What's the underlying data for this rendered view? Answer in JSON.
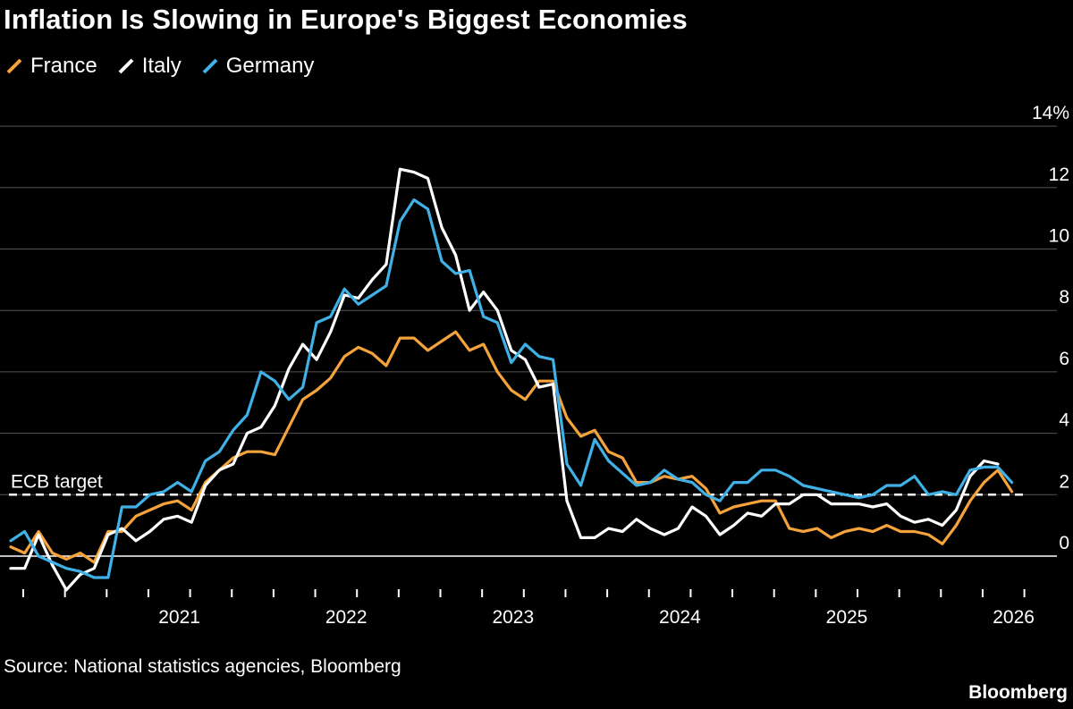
{
  "title": "Inflation Is Slowing in Europe's Biggest Economies",
  "source": "Source: National statistics agencies, Bloomberg",
  "brand": "Bloomberg",
  "colors": {
    "France": "#f5a33a",
    "Italy": "#ffffff",
    "Germany": "#3fb1e6",
    "grid": "#555555",
    "background": "#000000"
  },
  "chart_data": {
    "type": "line",
    "title": "Inflation Is Slowing in Europe's Biggest Economies",
    "xlabel": "",
    "ylabel": "",
    "x_ticks": [
      "2021",
      "2022",
      "2023",
      "2024",
      "2025",
      "2026"
    ],
    "y_ticks": [
      "0",
      "2",
      "4",
      "6",
      "8",
      "10",
      "12",
      "14%"
    ],
    "ylim": [
      -1.5,
      14
    ],
    "xlim": [
      "2020-07",
      "2026-07"
    ],
    "grid": true,
    "legend_position": "top-left",
    "reference_line": {
      "label": "ECB target",
      "value": 2
    },
    "series": [
      {
        "name": "France",
        "x_start": "2020-07",
        "values": [
          0.3,
          0.1,
          0.8,
          0.1,
          -0.1,
          0.1,
          -0.2,
          0.8,
          0.8,
          1.3,
          1.5,
          1.7,
          1.8,
          1.5,
          2.4,
          2.8,
          3.2,
          3.4,
          3.4,
          3.3,
          4.2,
          5.1,
          5.4,
          5.8,
          6.5,
          6.8,
          6.6,
          6.2,
          7.1,
          7.1,
          6.7,
          7.0,
          7.3,
          6.7,
          6.9,
          6.0,
          5.4,
          5.1,
          5.7,
          5.7,
          4.5,
          3.9,
          4.1,
          3.4,
          3.2,
          2.4,
          2.4,
          2.6,
          2.5,
          2.6,
          2.2,
          1.4,
          1.6,
          1.7,
          1.8,
          1.8,
          0.9,
          0.8,
          0.9,
          0.6,
          0.8,
          0.9,
          0.8,
          1.0,
          0.8,
          0.8,
          0.7,
          0.4,
          1.0,
          1.8,
          2.4,
          2.8,
          2.1
        ]
      },
      {
        "name": "Italy",
        "x_start": "2020-07",
        "values": [
          -0.4,
          -0.4,
          0.7,
          -0.3,
          -1.1,
          -0.6,
          -0.4,
          0.7,
          0.9,
          0.5,
          0.8,
          1.2,
          1.3,
          1.1,
          2.3,
          2.8,
          3.0,
          4.0,
          4.2,
          4.9,
          6.1,
          6.9,
          6.4,
          7.3,
          8.5,
          8.4,
          9.0,
          9.5,
          12.6,
          12.5,
          12.3,
          10.7,
          9.8,
          8.0,
          8.6,
          8.0,
          6.7,
          6.4,
          5.5,
          5.6,
          1.8,
          0.6,
          0.6,
          0.9,
          0.8,
          1.2,
          0.9,
          0.7,
          0.9,
          1.6,
          1.3,
          0.7,
          1.0,
          1.4,
          1.3,
          1.7,
          1.7,
          2.0,
          2.0,
          1.7,
          1.7,
          1.7,
          1.6,
          1.7,
          1.3,
          1.1,
          1.2,
          1.0,
          1.5,
          2.6,
          3.1,
          3.0
        ]
      },
      {
        "name": "Germany",
        "x_start": "2020-07",
        "values": [
          0.5,
          0.8,
          0.0,
          -0.2,
          -0.4,
          -0.5,
          -0.7,
          -0.7,
          1.6,
          1.6,
          2.0,
          2.1,
          2.4,
          2.1,
          3.1,
          3.4,
          4.1,
          4.6,
          6.0,
          5.7,
          5.1,
          5.5,
          7.6,
          7.8,
          8.7,
          8.2,
          8.5,
          8.8,
          10.9,
          11.6,
          11.3,
          9.6,
          9.2,
          9.3,
          7.8,
          7.6,
          6.3,
          6.9,
          6.5,
          6.4,
          3.0,
          2.3,
          3.8,
          3.1,
          2.7,
          2.3,
          2.4,
          2.8,
          2.5,
          2.4,
          2.0,
          1.8,
          2.4,
          2.4,
          2.8,
          2.8,
          2.6,
          2.3,
          2.2,
          2.1,
          2.0,
          1.9,
          2.0,
          2.3,
          2.3,
          2.6,
          2.0,
          2.1,
          2.0,
          2.8,
          2.9,
          2.9,
          2.4
        ]
      }
    ]
  }
}
